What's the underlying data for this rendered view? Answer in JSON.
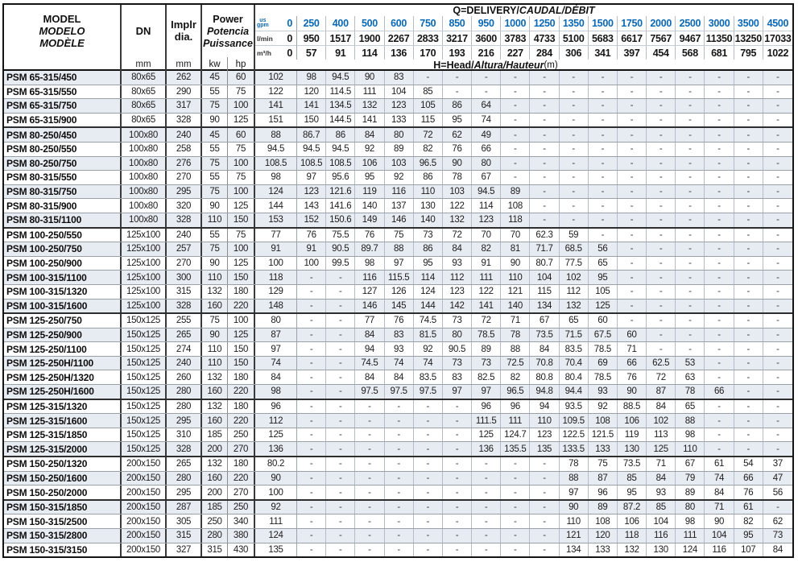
{
  "colors": {
    "accent_blue": "#0a68b4",
    "stripe_row": "#e7ebf2",
    "border_dark": "#141414"
  },
  "header": {
    "model_lines": [
      "MODEL",
      "MODELO",
      "MODÈLE"
    ],
    "dn_label": "DN",
    "implr_lines": [
      "Implr",
      "dia."
    ],
    "power_lines": [
      "Power",
      "Potencia",
      "Puissance"
    ],
    "unit_mm_dn": "mm",
    "unit_mm_dia": "mm",
    "unit_kw": "kw",
    "unit_hp": "hp",
    "q_title_roman": "Q=DELIVERY/",
    "q_title_italic": "CAUDAL/DÉBIT",
    "h_title_roman": "H=Head/",
    "h_title_italic": "Altura/Hauteur",
    "h_title_unit": "(m)",
    "flow_rows": [
      {
        "key": "gpm",
        "unit": "us\ngpm",
        "values": [
          "0",
          "250",
          "400",
          "500",
          "600",
          "750",
          "850",
          "950",
          "1000",
          "1250",
          "1350",
          "1500",
          "1750",
          "2000",
          "2500",
          "3000",
          "3500",
          "4500"
        ]
      },
      {
        "key": "lmin",
        "unit": "l/min",
        "values": [
          "0",
          "950",
          "1517",
          "1900",
          "2267",
          "2833",
          "3217",
          "3600",
          "3783",
          "4733",
          "5100",
          "5683",
          "6617",
          "7567",
          "9467",
          "11350",
          "13250",
          "17033"
        ]
      },
      {
        "key": "m3h",
        "unit": "m³/h",
        "values": [
          "0",
          "57",
          "91",
          "114",
          "136",
          "170",
          "193",
          "216",
          "227",
          "284",
          "306",
          "341",
          "397",
          "454",
          "568",
          "681",
          "795",
          "1022"
        ]
      }
    ]
  },
  "group_breaks_after": [
    3,
    10,
    16,
    22,
    26,
    29
  ],
  "rows": [
    {
      "model": "PSM 65-315/450",
      "dn": "80x65",
      "dia": "262",
      "kw": "45",
      "hp": "60",
      "h": [
        "102",
        "98",
        "94.5",
        "90",
        "83",
        "-",
        "-",
        "-",
        "-",
        "-",
        "-",
        "-",
        "-",
        "-",
        "-",
        "-",
        "-",
        "-"
      ]
    },
    {
      "model": "PSM 65-315/550",
      "dn": "80x65",
      "dia": "290",
      "kw": "55",
      "hp": "75",
      "h": [
        "122",
        "120",
        "114.5",
        "111",
        "104",
        "85",
        "-",
        "-",
        "-",
        "-",
        "-",
        "-",
        "-",
        "-",
        "-",
        "-",
        "-",
        "-"
      ]
    },
    {
      "model": "PSM 65-315/750",
      "dn": "80x65",
      "dia": "317",
      "kw": "75",
      "hp": "100",
      "h": [
        "141",
        "141",
        "134.5",
        "132",
        "123",
        "105",
        "86",
        "64",
        "-",
        "-",
        "-",
        "-",
        "-",
        "-",
        "-",
        "-",
        "-",
        "-"
      ]
    },
    {
      "model": "PSM 65-315/900",
      "dn": "80x65",
      "dia": "328",
      "kw": "90",
      "hp": "125",
      "h": [
        "151",
        "150",
        "144.5",
        "141",
        "133",
        "115",
        "95",
        "74",
        "-",
        "-",
        "-",
        "-",
        "-",
        "-",
        "-",
        "-",
        "-",
        "-"
      ]
    },
    {
      "model": "PSM 80-250/450",
      "dn": "100x80",
      "dia": "240",
      "kw": "45",
      "hp": "60",
      "h": [
        "88",
        "86.7",
        "86",
        "84",
        "80",
        "72",
        "62",
        "49",
        "-",
        "-",
        "-",
        "-",
        "-",
        "-",
        "-",
        "-",
        "-",
        "-"
      ]
    },
    {
      "model": "PSM 80-250/550",
      "dn": "100x80",
      "dia": "258",
      "kw": "55",
      "hp": "75",
      "h": [
        "94.5",
        "94.5",
        "94.5",
        "92",
        "89",
        "82",
        "76",
        "66",
        "-",
        "-",
        "-",
        "-",
        "-",
        "-",
        "-",
        "-",
        "-",
        "-"
      ]
    },
    {
      "model": "PSM 80-250/750",
      "dn": "100x80",
      "dia": "276",
      "kw": "75",
      "hp": "100",
      "h": [
        "108.5",
        "108.5",
        "108.5",
        "106",
        "103",
        "96.5",
        "90",
        "80",
        "-",
        "-",
        "-",
        "-",
        "-",
        "-",
        "-",
        "-",
        "-",
        "-"
      ]
    },
    {
      "model": "PSM 80-315/550",
      "dn": "100x80",
      "dia": "270",
      "kw": "55",
      "hp": "75",
      "h": [
        "98",
        "97",
        "95.6",
        "95",
        "92",
        "86",
        "78",
        "67",
        "-",
        "-",
        "-",
        "-",
        "-",
        "-",
        "-",
        "-",
        "-",
        "-"
      ]
    },
    {
      "model": "PSM 80-315/750",
      "dn": "100x80",
      "dia": "295",
      "kw": "75",
      "hp": "100",
      "h": [
        "124",
        "123",
        "121.6",
        "119",
        "116",
        "110",
        "103",
        "94.5",
        "89",
        "-",
        "-",
        "-",
        "-",
        "-",
        "-",
        "-",
        "-",
        "-"
      ]
    },
    {
      "model": "PSM 80-315/900",
      "dn": "100x80",
      "dia": "320",
      "kw": "90",
      "hp": "125",
      "h": [
        "144",
        "143",
        "141.6",
        "140",
        "137",
        "130",
        "122",
        "114",
        "108",
        "-",
        "-",
        "-",
        "-",
        "-",
        "-",
        "-",
        "-",
        "-"
      ]
    },
    {
      "model": "PSM 80-315/1100",
      "dn": "100x80",
      "dia": "328",
      "kw": "110",
      "hp": "150",
      "h": [
        "153",
        "152",
        "150.6",
        "149",
        "146",
        "140",
        "132",
        "123",
        "118",
        "-",
        "-",
        "-",
        "-",
        "-",
        "-",
        "-",
        "-",
        "-"
      ]
    },
    {
      "model": "PSM 100-250/550",
      "dn": "125x100",
      "dia": "240",
      "kw": "55",
      "hp": "75",
      "h": [
        "77",
        "76",
        "75.5",
        "76",
        "75",
        "73",
        "72",
        "70",
        "70",
        "62.3",
        "59",
        "-",
        "-",
        "-",
        "-",
        "-",
        "-",
        "-"
      ]
    },
    {
      "model": "PSM 100-250/750",
      "dn": "125x100",
      "dia": "257",
      "kw": "75",
      "hp": "100",
      "h": [
        "91",
        "91",
        "90.5",
        "89.7",
        "88",
        "86",
        "84",
        "82",
        "81",
        "71.7",
        "68.5",
        "56",
        "-",
        "-",
        "-",
        "-",
        "-",
        "-"
      ]
    },
    {
      "model": "PSM 100-250/900",
      "dn": "125x100",
      "dia": "270",
      "kw": "90",
      "hp": "125",
      "h": [
        "100",
        "100",
        "99.5",
        "98",
        "97",
        "95",
        "93",
        "91",
        "90",
        "80.7",
        "77.5",
        "65",
        "-",
        "-",
        "-",
        "-",
        "-",
        "-"
      ]
    },
    {
      "model": "PSM 100-315/1100",
      "dn": "125x100",
      "dia": "300",
      "kw": "110",
      "hp": "150",
      "h": [
        "118",
        "-",
        "-",
        "116",
        "115.5",
        "114",
        "112",
        "111",
        "110",
        "104",
        "102",
        "95",
        "-",
        "-",
        "-",
        "-",
        "-",
        "-"
      ]
    },
    {
      "model": "PSM 100-315/1320",
      "dn": "125x100",
      "dia": "315",
      "kw": "132",
      "hp": "180",
      "h": [
        "129",
        "-",
        "-",
        "127",
        "126",
        "124",
        "123",
        "122",
        "121",
        "115",
        "112",
        "105",
        "-",
        "-",
        "-",
        "-",
        "-",
        "-"
      ]
    },
    {
      "model": "PSM 100-315/1600",
      "dn": "125x100",
      "dia": "328",
      "kw": "160",
      "hp": "220",
      "h": [
        "148",
        "-",
        "-",
        "146",
        "145",
        "144",
        "142",
        "141",
        "140",
        "134",
        "132",
        "125",
        "-",
        "-",
        "-",
        "-",
        "-",
        "-"
      ]
    },
    {
      "model": "PSM 125-250/750",
      "dn": "150x125",
      "dia": "255",
      "kw": "75",
      "hp": "100",
      "h": [
        "80",
        "-",
        "-",
        "77",
        "76",
        "74.5",
        "73",
        "72",
        "71",
        "67",
        "65",
        "60",
        "-",
        "-",
        "-",
        "-",
        "-",
        "-"
      ]
    },
    {
      "model": "PSM 125-250/900",
      "dn": "150x125",
      "dia": "265",
      "kw": "90",
      "hp": "125",
      "h": [
        "87",
        "-",
        "-",
        "84",
        "83",
        "81.5",
        "80",
        "78.5",
        "78",
        "73.5",
        "71.5",
        "67.5",
        "60",
        "-",
        "-",
        "-",
        "-",
        "-"
      ]
    },
    {
      "model": "PSM 125-250/1100",
      "dn": "150x125",
      "dia": "274",
      "kw": "110",
      "hp": "150",
      "h": [
        "97",
        "-",
        "-",
        "94",
        "93",
        "92",
        "90.5",
        "89",
        "88",
        "84",
        "83.5",
        "78.5",
        "71",
        "-",
        "-",
        "-",
        "-",
        "-"
      ]
    },
    {
      "model": "PSM 125-250H/1100",
      "dn": "150x125",
      "dia": "240",
      "kw": "110",
      "hp": "150",
      "h": [
        "74",
        "-",
        "-",
        "74.5",
        "74",
        "74",
        "73",
        "73",
        "72.5",
        "70.8",
        "70.4",
        "69",
        "66",
        "62.5",
        "53",
        "-",
        "-",
        "-"
      ]
    },
    {
      "model": "PSM 125-250H/1320",
      "dn": "150x125",
      "dia": "260",
      "kw": "132",
      "hp": "180",
      "h": [
        "84",
        "-",
        "-",
        "84",
        "84",
        "83.5",
        "83",
        "82.5",
        "82",
        "80.8",
        "80.4",
        "78.5",
        "76",
        "72",
        "63",
        "-",
        "-",
        "-"
      ]
    },
    {
      "model": "PSM 125-250H/1600",
      "dn": "150x125",
      "dia": "280",
      "kw": "160",
      "hp": "220",
      "h": [
        "98",
        "-",
        "-",
        "97.5",
        "97.5",
        "97.5",
        "97",
        "97",
        "96.5",
        "94.8",
        "94.4",
        "93",
        "90",
        "87",
        "78",
        "66",
        "-",
        "-"
      ]
    },
    {
      "model": "PSM 125-315/1320",
      "dn": "150x125",
      "dia": "280",
      "kw": "132",
      "hp": "180",
      "h": [
        "96",
        "-",
        "-",
        "-",
        "-",
        "-",
        "-",
        "96",
        "96",
        "94",
        "93.5",
        "92",
        "88.5",
        "84",
        "65",
        "-",
        "-",
        "-"
      ]
    },
    {
      "model": "PSM 125-315/1600",
      "dn": "150x125",
      "dia": "295",
      "kw": "160",
      "hp": "220",
      "h": [
        "112",
        "-",
        "-",
        "-",
        "-",
        "-",
        "-",
        "111.5",
        "111",
        "110",
        "109.5",
        "108",
        "106",
        "102",
        "88",
        "-",
        "-",
        "-"
      ]
    },
    {
      "model": "PSM 125-315/1850",
      "dn": "150x125",
      "dia": "310",
      "kw": "185",
      "hp": "250",
      "h": [
        "125",
        "-",
        "-",
        "-",
        "-",
        "-",
        "-",
        "125",
        "124.7",
        "123",
        "122.5",
        "121.5",
        "119",
        "113",
        "98",
        "-",
        "-",
        "-"
      ]
    },
    {
      "model": "PSM 125-315/2000",
      "dn": "150x125",
      "dia": "328",
      "kw": "200",
      "hp": "270",
      "h": [
        "136",
        "-",
        "-",
        "-",
        "-",
        "-",
        "-",
        "136",
        "135.5",
        "135",
        "133.5",
        "133",
        "130",
        "125",
        "110",
        "-",
        "-",
        "-"
      ]
    },
    {
      "model": "PSM 150-250/1320",
      "dn": "200x150",
      "dia": "265",
      "kw": "132",
      "hp": "180",
      "h": [
        "80.2",
        "-",
        "-",
        "-",
        "-",
        "-",
        "-",
        "-",
        "-",
        "-",
        "78",
        "75",
        "73.5",
        "71",
        "67",
        "61",
        "54",
        "37"
      ]
    },
    {
      "model": "PSM 150-250/1600",
      "dn": "200x150",
      "dia": "280",
      "kw": "160",
      "hp": "220",
      "h": [
        "90",
        "-",
        "-",
        "-",
        "-",
        "-",
        "-",
        "-",
        "-",
        "-",
        "88",
        "87",
        "85",
        "84",
        "79",
        "74",
        "66",
        "47"
      ]
    },
    {
      "model": "PSM 150-250/2000",
      "dn": "200x150",
      "dia": "295",
      "kw": "200",
      "hp": "270",
      "h": [
        "100",
        "-",
        "-",
        "-",
        "-",
        "-",
        "-",
        "-",
        "-",
        "-",
        "97",
        "96",
        "95",
        "93",
        "89",
        "84",
        "76",
        "56"
      ]
    },
    {
      "model": "PSM 150-315/1850",
      "dn": "200x150",
      "dia": "287",
      "kw": "185",
      "hp": "250",
      "h": [
        "92",
        "-",
        "-",
        "-",
        "-",
        "-",
        "-",
        "-",
        "-",
        "-",
        "90",
        "89",
        "87.2",
        "85",
        "80",
        "71",
        "61",
        "-"
      ]
    },
    {
      "model": "PSM 150-315/2500",
      "dn": "200x150",
      "dia": "305",
      "kw": "250",
      "hp": "340",
      "h": [
        "111",
        "-",
        "-",
        "-",
        "-",
        "-",
        "-",
        "-",
        "-",
        "-",
        "110",
        "108",
        "106",
        "104",
        "98",
        "90",
        "82",
        "62"
      ]
    },
    {
      "model": "PSM 150-315/2800",
      "dn": "200x150",
      "dia": "315",
      "kw": "280",
      "hp": "380",
      "h": [
        "124",
        "-",
        "-",
        "-",
        "-",
        "-",
        "-",
        "-",
        "-",
        "-",
        "121",
        "120",
        "118",
        "116",
        "111",
        "104",
        "95",
        "73"
      ]
    },
    {
      "model": "PSM 150-315/3150",
      "dn": "200x150",
      "dia": "327",
      "kw": "315",
      "hp": "430",
      "h": [
        "135",
        "-",
        "-",
        "-",
        "-",
        "-",
        "-",
        "-",
        "-",
        "-",
        "134",
        "133",
        "132",
        "130",
        "124",
        "116",
        "107",
        "84"
      ]
    }
  ]
}
